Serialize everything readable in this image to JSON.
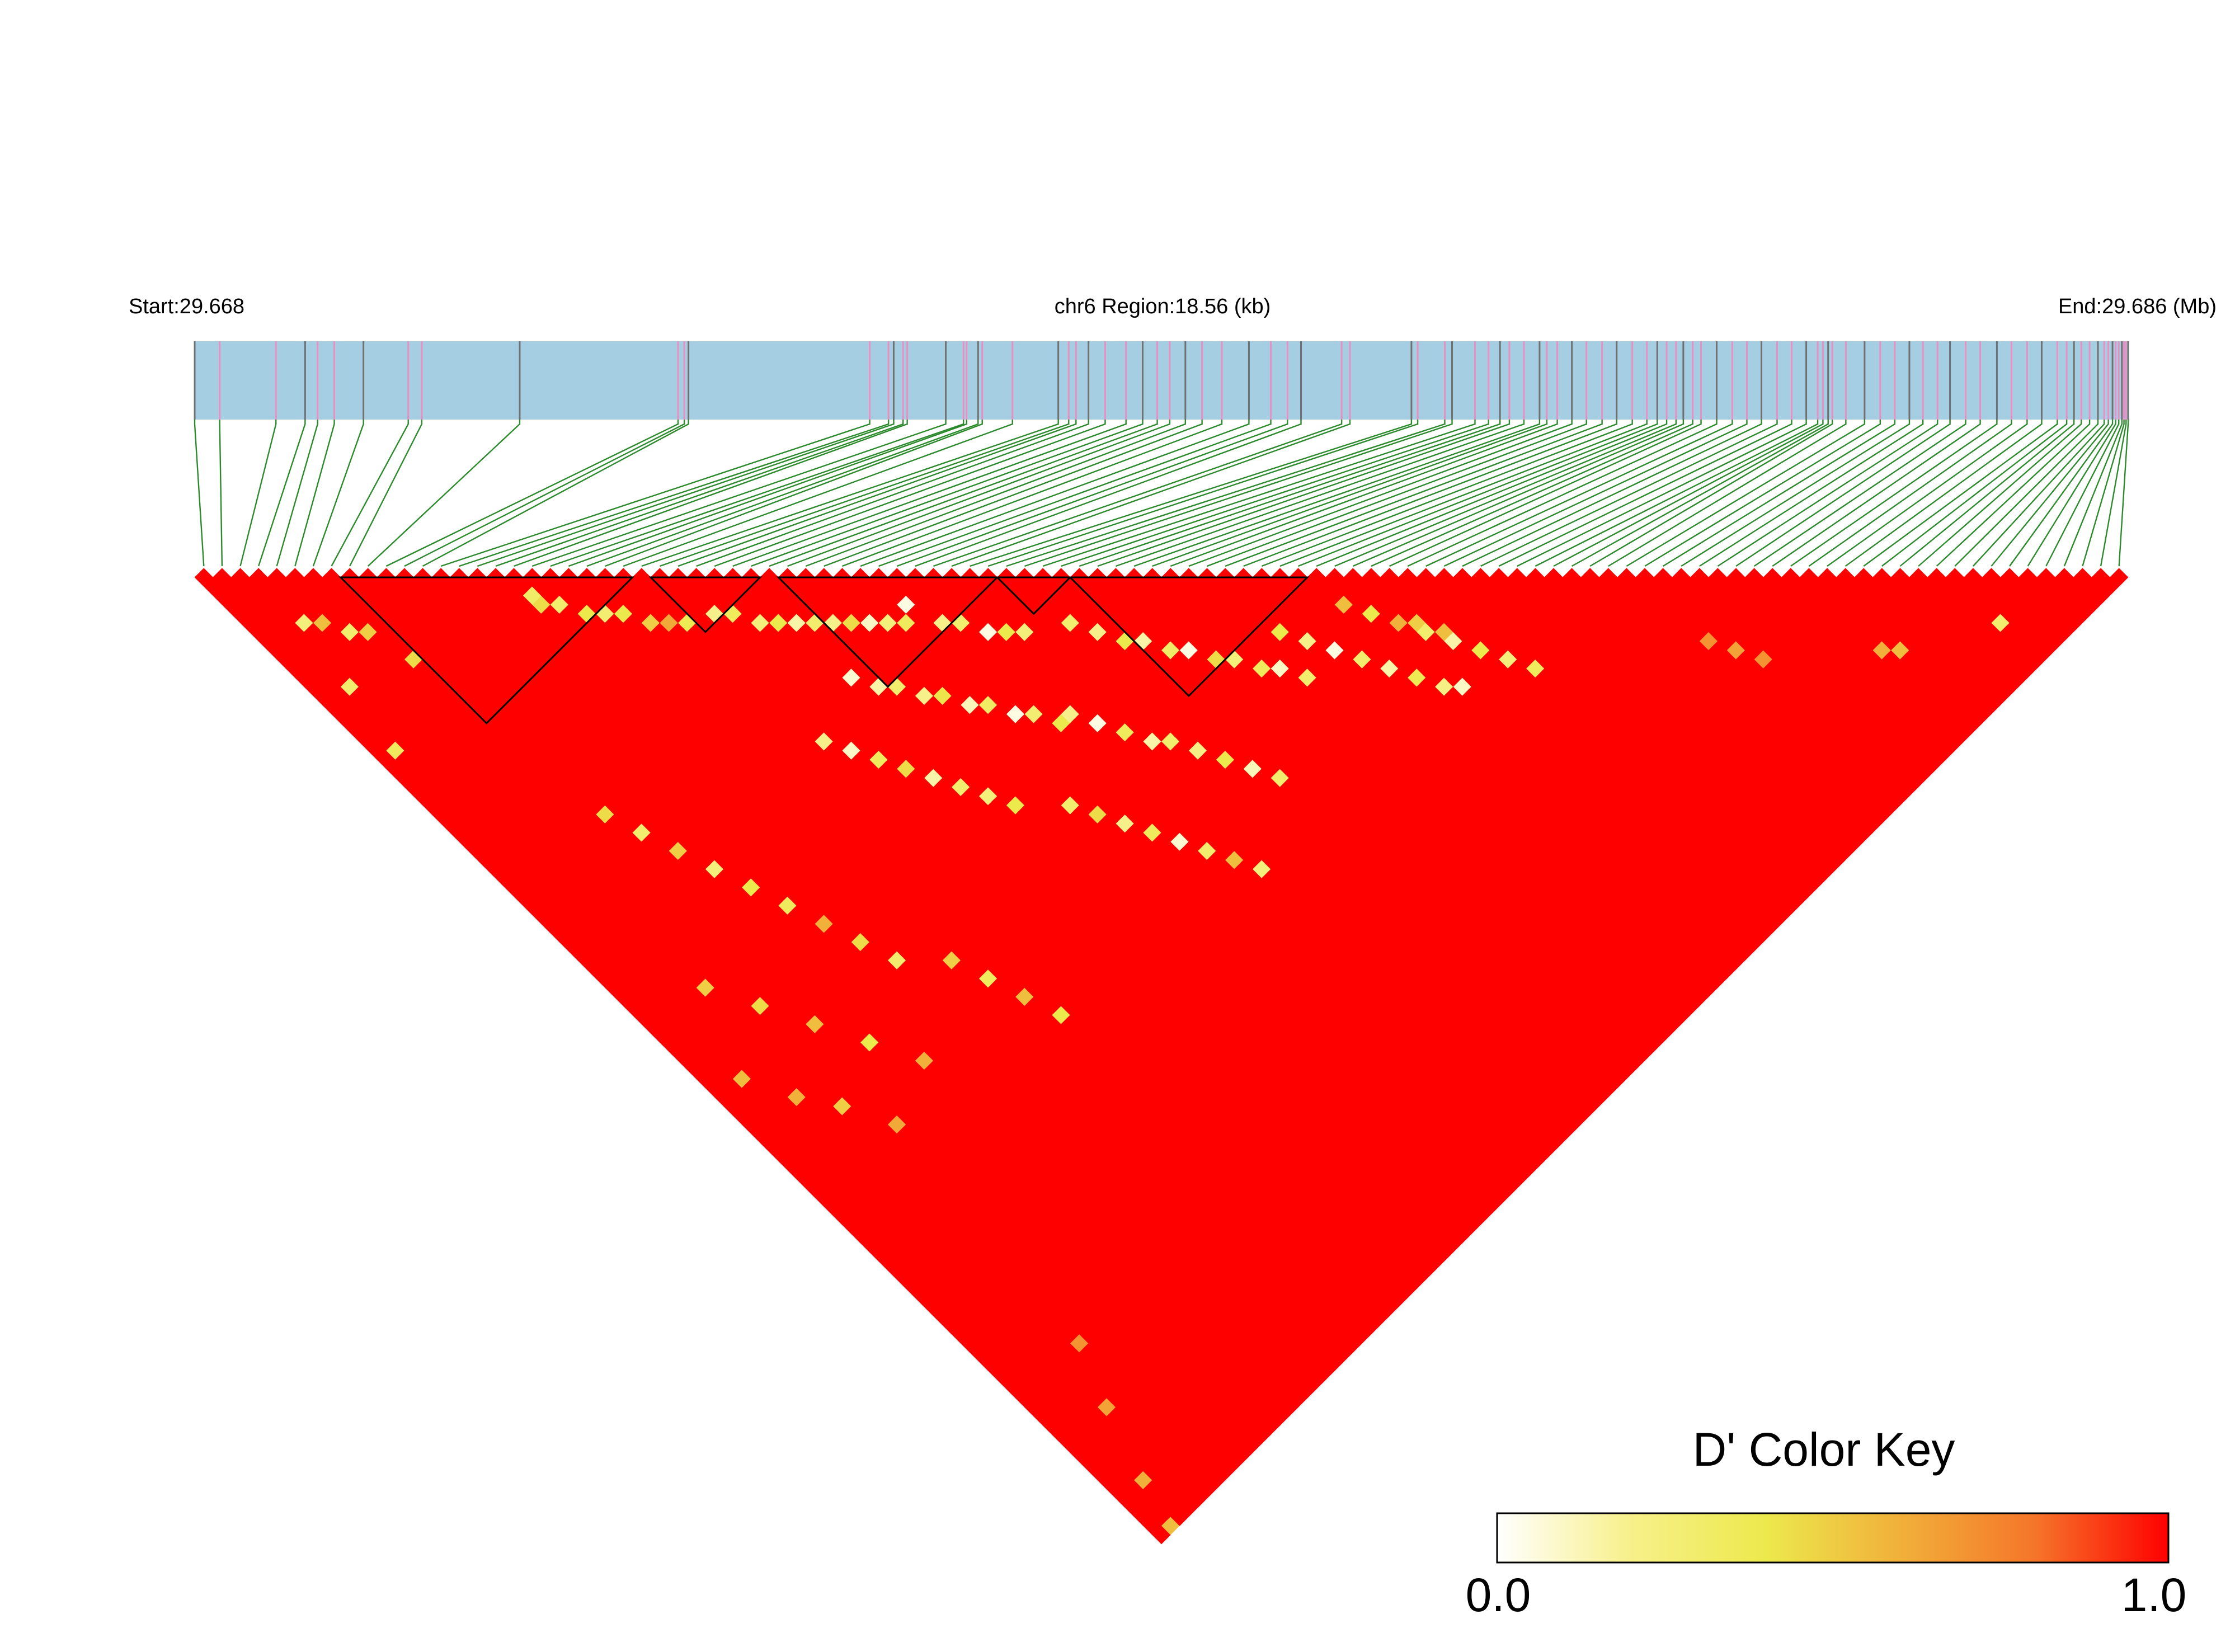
{
  "chart_data": {
    "type": "heatmap",
    "subtype": "ld-triangle",
    "header": {
      "start_label": "Start:29.668",
      "region_label": "chr6 Region:18.56 (kb)",
      "end_label": "End:29.686 (Mb)"
    },
    "region": {
      "chromosome": "chr6",
      "start_mb": 29.668,
      "end_mb": 29.686,
      "length_kb": 18.56
    },
    "marker_count": 106,
    "snp_positions_kb": [
      0.0,
      0.24,
      0.78,
      1.06,
      1.18,
      1.34,
      1.62,
      2.05,
      2.18,
      3.12,
      4.64,
      4.7,
      4.74,
      6.48,
      6.66,
      6.71,
      6.8,
      6.84,
      7.21,
      7.38,
      7.41,
      7.52,
      7.56,
      7.85,
      8.29,
      8.39,
      8.46,
      8.58,
      8.74,
      8.94,
      9.1,
      9.24,
      9.36,
      9.51,
      9.67,
      9.86,
      10.12,
      10.33,
      10.49,
      10.62,
      11.01,
      11.09,
      11.68,
      11.74,
      12.0,
      12.07,
      12.29,
      12.42,
      12.53,
      12.62,
      12.76,
      12.91,
      12.98,
      13.08,
      13.22,
      13.36,
      13.51,
      13.65,
      13.8,
      13.94,
      14.04,
      14.13,
      14.22,
      14.29,
      14.38,
      14.46,
      14.61,
      14.76,
      14.9,
      15.04,
      15.19,
      15.33,
      15.47,
      15.58,
      15.63,
      15.68,
      15.72,
      15.85,
      16.03,
      16.18,
      16.32,
      16.46,
      16.59,
      16.73,
      16.85,
      17.0,
      17.14,
      17.3,
      17.44,
      17.59,
      17.73,
      17.88,
      17.97,
      18.04,
      18.11,
      18.19,
      18.27,
      18.33,
      18.37,
      18.41,
      18.44,
      18.47,
      18.5,
      18.52,
      18.54,
      18.56
    ],
    "haplotype_blocks": [
      [
        8,
        23
      ],
      [
        25,
        30
      ],
      [
        32,
        43
      ],
      [
        44,
        47
      ],
      [
        48,
        60
      ]
    ],
    "low_d_prime_cells": [
      [
        17,
        19,
        0.32
      ],
      [
        17,
        20,
        0.45
      ],
      [
        18,
        21,
        0.3
      ],
      [
        19,
        23,
        0.4
      ],
      [
        20,
        24,
        0.28
      ],
      [
        21,
        25,
        0.4
      ],
      [
        22,
        27,
        0.5
      ],
      [
        23,
        28,
        0.62
      ],
      [
        24,
        29,
        0.38
      ],
      [
        3,
        8,
        0.25
      ],
      [
        4,
        9,
        0.55
      ],
      [
        5,
        11,
        0.3
      ],
      [
        6,
        12,
        0.5
      ],
      [
        2,
        14,
        0.3
      ],
      [
        7,
        16,
        0.45
      ],
      [
        1,
        20,
        0.35
      ],
      [
        26,
        30,
        0.2
      ],
      [
        27,
        31,
        0.35
      ],
      [
        28,
        33,
        0.25
      ],
      [
        29,
        34,
        0.4
      ],
      [
        30,
        35,
        0.15
      ],
      [
        31,
        36,
        0.3
      ],
      [
        32,
        37,
        0.2
      ],
      [
        33,
        38,
        0.45
      ],
      [
        34,
        39,
        0.1
      ],
      [
        35,
        40,
        0.25
      ],
      [
        36,
        41,
        0.35
      ],
      [
        37,
        40,
        0.05
      ],
      [
        38,
        43,
        0.2
      ],
      [
        39,
        44,
        0.3
      ],
      [
        40,
        46,
        0.05
      ],
      [
        41,
        47,
        0.4
      ],
      [
        42,
        48,
        0.25
      ],
      [
        30,
        41,
        0.08
      ],
      [
        31,
        43,
        0.15
      ],
      [
        32,
        44,
        0.3
      ],
      [
        33,
        46,
        0.2
      ],
      [
        34,
        47,
        0.42
      ],
      [
        35,
        49,
        0.12
      ],
      [
        36,
        50,
        0.33
      ],
      [
        37,
        52,
        0.05
      ],
      [
        38,
        53,
        0.28
      ],
      [
        39,
        55,
        0.4
      ],
      [
        25,
        43,
        0.2
      ],
      [
        26,
        45,
        0.1
      ],
      [
        27,
        47,
        0.35
      ],
      [
        28,
        49,
        0.45
      ],
      [
        29,
        51,
        0.15
      ],
      [
        30,
        53,
        0.3
      ],
      [
        31,
        55,
        0.25
      ],
      [
        32,
        57,
        0.4
      ],
      [
        45,
        50,
        0.3
      ],
      [
        46,
        52,
        0.2
      ],
      [
        47,
        54,
        0.4
      ],
      [
        48,
        55,
        0.15
      ],
      [
        49,
        57,
        0.32
      ],
      [
        50,
        58,
        0.05
      ],
      [
        51,
        60,
        0.45
      ],
      [
        52,
        61,
        0.25
      ],
      [
        53,
        63,
        0.35
      ],
      [
        54,
        64,
        0.1
      ],
      [
        55,
        66,
        0.3
      ],
      [
        40,
        55,
        0.2
      ],
      [
        41,
        57,
        0.05
      ],
      [
        42,
        59,
        0.35
      ],
      [
        43,
        61,
        0.15
      ],
      [
        44,
        62,
        0.3
      ],
      [
        45,
        64,
        0.22
      ],
      [
        46,
        66,
        0.4
      ],
      [
        47,
        68,
        0.12
      ],
      [
        48,
        70,
        0.3
      ],
      [
        56,
        62,
        0.4
      ],
      [
        57,
        64,
        0.2
      ],
      [
        58,
        66,
        0.05
      ],
      [
        59,
        68,
        0.3
      ],
      [
        60,
        70,
        0.15
      ],
      [
        61,
        72,
        0.38
      ],
      [
        62,
        74,
        0.22
      ],
      [
        63,
        75,
        0.1
      ],
      [
        35,
        60,
        0.3
      ],
      [
        36,
        62,
        0.45
      ],
      [
        37,
        64,
        0.2
      ],
      [
        38,
        66,
        0.35
      ],
      [
        39,
        68,
        0.08
      ],
      [
        40,
        70,
        0.3
      ],
      [
        41,
        72,
        0.55
      ],
      [
        42,
        74,
        0.25
      ],
      [
        64,
        70,
        0.3
      ],
      [
        65,
        72,
        0.15
      ],
      [
        66,
        74,
        0.4
      ],
      [
        67,
        76,
        0.25
      ],
      [
        68,
        78,
        0.35
      ],
      [
        61,
        64,
        0.55
      ],
      [
        62,
        66,
        0.4
      ],
      [
        63,
        68,
        0.6
      ],
      [
        64,
        69,
        0.5
      ],
      [
        65,
        71,
        0.55
      ],
      [
        79,
        86,
        0.7
      ],
      [
        80,
        88,
        0.65
      ],
      [
        81,
        90,
        0.7
      ],
      [
        88,
        96,
        0.6
      ],
      [
        89,
        97,
        0.55
      ],
      [
        96,
        101,
        0.3
      ],
      [
        9,
        35,
        0.45
      ],
      [
        10,
        38,
        0.3
      ],
      [
        11,
        41,
        0.5
      ],
      [
        12,
        44,
        0.25
      ],
      [
        13,
        47,
        0.4
      ],
      [
        14,
        50,
        0.35
      ],
      [
        15,
        53,
        0.6
      ],
      [
        16,
        56,
        0.45
      ],
      [
        17,
        59,
        0.3
      ],
      [
        20,
        62,
        0.5
      ],
      [
        21,
        65,
        0.35
      ],
      [
        22,
        68,
        0.55
      ],
      [
        23,
        71,
        0.4
      ],
      [
        5,
        50,
        0.5
      ],
      [
        7,
        54,
        0.45
      ],
      [
        9,
        58,
        0.55
      ],
      [
        11,
        62,
        0.4
      ],
      [
        13,
        66,
        0.6
      ],
      [
        2,
        57,
        0.55
      ],
      [
        4,
        61,
        0.6
      ],
      [
        6,
        64,
        0.5
      ],
      [
        8,
        68,
        0.62
      ],
      [
        1,
        105,
        0.55
      ],
      [
        2,
        101,
        0.6
      ],
      [
        4,
        95,
        0.65
      ],
      [
        6,
        90,
        0.7
      ]
    ],
    "color_key": {
      "title": "D' Color Key",
      "min_label": "0.0",
      "max_label": "1.0",
      "range": [
        0.0,
        1.0
      ],
      "colors": [
        "#ffffff",
        "#f7f08a",
        "#ece94d",
        "#f1b03a",
        "#f5762a",
        "#ff0000"
      ]
    },
    "colors": {
      "gene_track": "#a6cee3",
      "snp_tick_dark": "#707070",
      "snp_tick_pink": "#ea8fc3",
      "connector": "#2b8a2b",
      "default_cell": "#ff0000",
      "block_outline": "#000000"
    }
  }
}
